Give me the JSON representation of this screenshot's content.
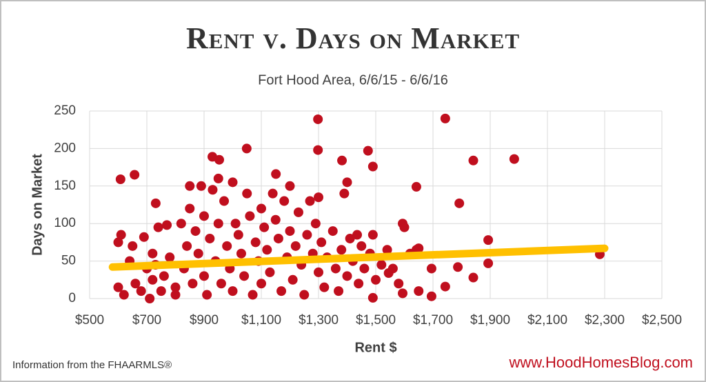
{
  "chart_data": {
    "type": "scatter",
    "title": "Rent v. Days on Market",
    "subtitle": "Fort Hood Area, 6/6/15 - 6/6/16",
    "x_label": "Rent $",
    "y_label": "Days on Market",
    "source": "Information from the FHAARMLS®",
    "website": "www.HoodHomesBlog.com",
    "xlim": [
      500,
      2500
    ],
    "ylim": [
      0,
      250
    ],
    "xticks": [
      {
        "value": 500,
        "label": "$500"
      },
      {
        "value": 700,
        "label": "$700"
      },
      {
        "value": 900,
        "label": "$900"
      },
      {
        "value": 1100,
        "label": "$1,100"
      },
      {
        "value": 1300,
        "label": "$1,300"
      },
      {
        "value": 1500,
        "label": "$1,500"
      },
      {
        "value": 1700,
        "label": "$1,700"
      },
      {
        "value": 1900,
        "label": "$1,900"
      },
      {
        "value": 2100,
        "label": "$2,100"
      },
      {
        "value": 2300,
        "label": "$2,300"
      },
      {
        "value": 2500,
        "label": "$2,500"
      }
    ],
    "yticks": [
      0,
      50,
      100,
      150,
      200,
      250
    ],
    "grid": true,
    "color": "#c00f1e",
    "x": [
      608,
      657,
      731,
      929,
      953,
      1049,
      1151,
      1298,
      1298,
      1382,
      1473,
      1490,
      1642,
      1743,
      1792,
      1841,
      1984,
      1893,
      1893,
      1841,
      2283,
      1787,
      1743,
      1695,
      1695,
      1642,
      1594,
      1594,
      1545,
      1490,
      1435,
      600,
      600,
      610,
      620,
      640,
      650,
      660,
      680,
      690,
      700,
      710,
      720,
      720,
      730,
      740,
      750,
      760,
      770,
      780,
      800,
      800,
      820,
      830,
      840,
      850,
      850,
      860,
      870,
      880,
      890,
      900,
      900,
      910,
      920,
      930,
      940,
      950,
      950,
      960,
      970,
      980,
      990,
      1000,
      1000,
      1010,
      1020,
      1030,
      1040,
      1050,
      1060,
      1070,
      1080,
      1090,
      1100,
      1100,
      1110,
      1120,
      1130,
      1140,
      1150,
      1160,
      1170,
      1180,
      1190,
      1200,
      1200,
      1210,
      1220,
      1230,
      1240,
      1250,
      1260,
      1270,
      1280,
      1290,
      1300,
      1300,
      1310,
      1320,
      1330,
      1350,
      1360,
      1370,
      1380,
      1390,
      1400,
      1400,
      1410,
      1420,
      1440,
      1450,
      1460,
      1480,
      1490,
      1500,
      1520,
      1540,
      1560,
      1580,
      1600,
      1620,
      1650,
      1650
    ],
    "values": [
      159,
      165,
      127,
      189,
      185,
      200,
      166,
      239,
      198,
      184,
      197,
      176,
      149,
      240,
      127,
      184,
      186,
      78,
      47,
      28,
      59,
      42,
      16,
      3,
      40,
      65,
      100,
      7,
      34,
      1,
      85,
      15,
      75,
      85,
      5,
      50,
      70,
      20,
      10,
      82,
      40,
      0,
      25,
      60,
      45,
      95,
      10,
      30,
      98,
      55,
      15,
      5,
      100,
      40,
      70,
      120,
      150,
      20,
      90,
      60,
      150,
      110,
      30,
      5,
      80,
      145,
      50,
      160,
      100,
      20,
      130,
      70,
      40,
      155,
      10,
      100,
      85,
      60,
      30,
      140,
      110,
      5,
      75,
      50,
      120,
      20,
      95,
      65,
      35,
      140,
      105,
      80,
      10,
      130,
      55,
      150,
      90,
      25,
      70,
      115,
      45,
      5,
      85,
      130,
      60,
      100,
      35,
      135,
      75,
      15,
      55,
      90,
      40,
      10,
      65,
      140,
      30,
      155,
      80,
      50,
      20,
      70,
      40,
      60,
      85,
      25,
      45,
      65,
      40,
      20,
      95,
      60,
      67,
      10
    ],
    "trendline": {
      "x": [
        580,
        2300
      ],
      "values": [
        42,
        67
      ],
      "color": "#ffc000"
    }
  }
}
